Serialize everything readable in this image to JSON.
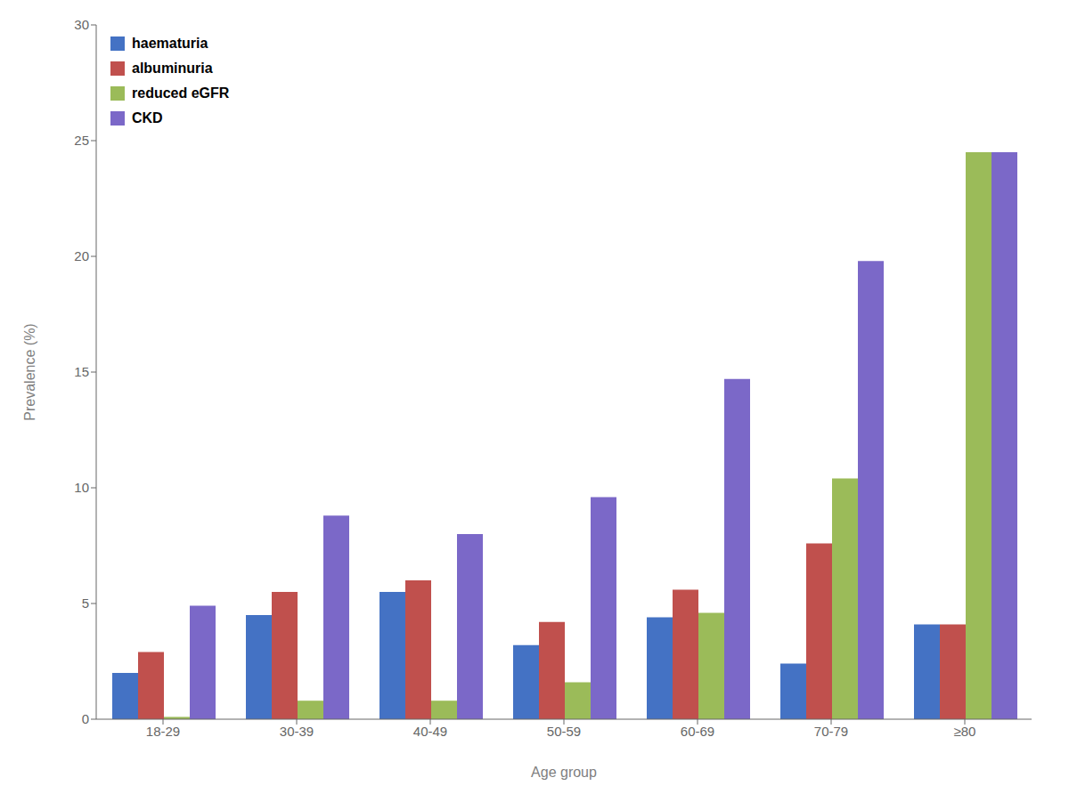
{
  "chart_data": {
    "type": "bar",
    "xlabel": "Age group",
    "ylabel": "Prevalence (%)",
    "categories": [
      "18-29",
      "30-39",
      "40-49",
      "50-59",
      "60-69",
      "70-79",
      "≥80"
    ],
    "series": [
      {
        "name": "haematuria",
        "color": "#4472C4",
        "values": [
          2.0,
          4.5,
          5.5,
          3.2,
          4.4,
          2.4,
          4.1
        ]
      },
      {
        "name": "albuminuria",
        "color": "#C0504D",
        "values": [
          2.9,
          5.5,
          6.0,
          4.2,
          5.6,
          7.6,
          4.1
        ]
      },
      {
        "name": "reduced eGFR",
        "color": "#9BBB59",
        "values": [
          0.1,
          0.8,
          0.8,
          1.6,
          4.6,
          10.4,
          24.5
        ]
      },
      {
        "name": "CKD",
        "color": "#7B68C8",
        "values": [
          4.9,
          8.8,
          8.0,
          9.6,
          14.7,
          19.8,
          24.5
        ]
      }
    ],
    "ylim": [
      0,
      30
    ],
    "yticks": [
      0,
      5,
      10,
      15,
      20,
      25,
      30
    ],
    "grid": false,
    "legend": "upper left"
  }
}
